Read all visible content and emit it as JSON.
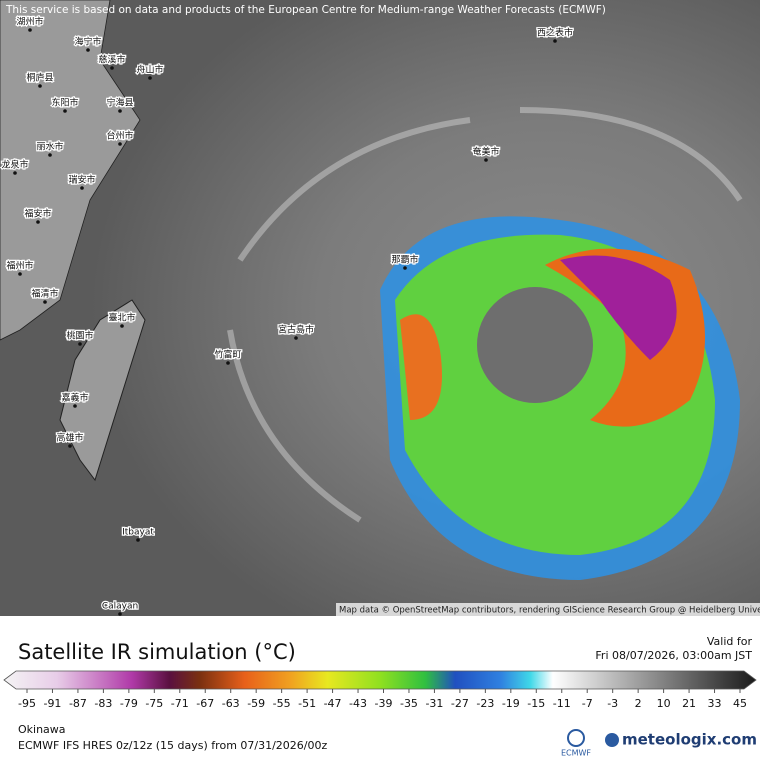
{
  "banner": "This service is based on data and products of the European Centre for Medium-range Weather Forecasts (ECMWF)",
  "map": {
    "labels": [
      "湖州市",
      "海宁市",
      "慈溪市",
      "舟山市",
      "桐庐县",
      "东阳市",
      "宁海县",
      "台州市",
      "丽水市",
      "龙泉市",
      "瑞安市",
      "福安市",
      "福州市",
      "福清市",
      "臺北市",
      "桃園市",
      "嘉義市",
      "高雄市",
      "竹富町",
      "宮古島市",
      "那覇市",
      "奄美市",
      "西之表市",
      "Itbayat",
      "Calayan"
    ],
    "attribution": "Map data © OpenStreetMap contributors, rendering GIScience Research Group @ Heidelberg University"
  },
  "legend": {
    "title": "Satellite IR simulation (°C)",
    "valid_label": "Valid for",
    "valid_time": "Fri 08/07/2026, 03:00am JST",
    "ticks": [
      -95,
      -91,
      -87,
      -83,
      -79,
      -75,
      -71,
      -67,
      -63,
      -59,
      -55,
      -51,
      -47,
      -43,
      -39,
      -35,
      -31,
      -27,
      -23,
      -19,
      -15,
      -11,
      -7,
      -3,
      2,
      10,
      21,
      33,
      45
    ],
    "region": "Okinawa",
    "model_info": "ECMWF IFS HRES 0z/12z (15 days) from 07/31/2026/00z"
  },
  "logos": {
    "ecmwf": "ECMWF",
    "meteologix": "meteologix.com"
  }
}
